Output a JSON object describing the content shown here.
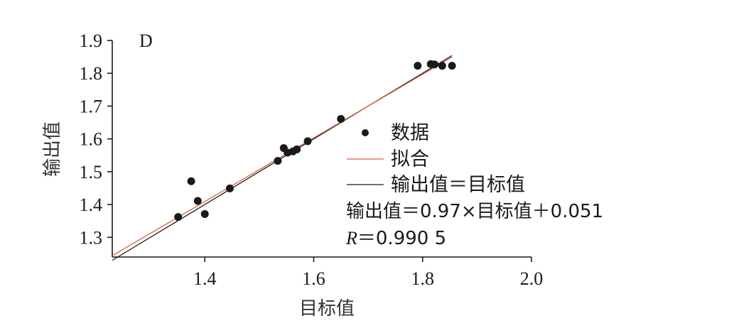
{
  "chart_data": {
    "type": "scatter",
    "panel_label": "D",
    "xlabel": "目标值",
    "ylabel": "输出值",
    "xlim": [
      1.23,
      2.0
    ],
    "ylim": [
      1.24,
      1.9
    ],
    "xticks": [
      1.4,
      1.6,
      1.8,
      2.0
    ],
    "xtick_labels": [
      "1.4",
      "1.6",
      "1.8",
      "2.0"
    ],
    "yticks": [
      1.3,
      1.4,
      1.5,
      1.6,
      1.7,
      1.8,
      1.9
    ],
    "ytick_labels": [
      "1.3",
      "1.4",
      "1.5",
      "1.6",
      "1.7",
      "1.8",
      "1.9"
    ],
    "grid": false,
    "legend_position": "center-right",
    "series": [
      {
        "name": "数据",
        "kind": "scatter",
        "color": "#1a1a1a",
        "points": [
          {
            "x": 1.351,
            "y": 1.362
          },
          {
            "x": 1.375,
            "y": 1.471
          },
          {
            "x": 1.387,
            "y": 1.411
          },
          {
            "x": 1.4,
            "y": 1.371
          },
          {
            "x": 1.446,
            "y": 1.449
          },
          {
            "x": 1.534,
            "y": 1.533
          },
          {
            "x": 1.545,
            "y": 1.572
          },
          {
            "x": 1.552,
            "y": 1.558
          },
          {
            "x": 1.562,
            "y": 1.562
          },
          {
            "x": 1.569,
            "y": 1.568
          },
          {
            "x": 1.589,
            "y": 1.593
          },
          {
            "x": 1.65,
            "y": 1.661
          },
          {
            "x": 1.791,
            "y": 1.823
          },
          {
            "x": 1.815,
            "y": 1.828
          },
          {
            "x": 1.822,
            "y": 1.827
          },
          {
            "x": 1.836,
            "y": 1.823
          },
          {
            "x": 1.854,
            "y": 1.823
          }
        ]
      },
      {
        "name": "拟合",
        "kind": "line",
        "color": "#d9603b",
        "slope": 0.97,
        "intercept": 0.051,
        "x_range": [
          1.23,
          1.854
        ]
      },
      {
        "name": "输出值＝目标值",
        "kind": "line",
        "color": "#1a1a1a",
        "slope": 1.0,
        "intercept": 0.0,
        "x_range": [
          1.23,
          1.854
        ]
      }
    ],
    "annotations": {
      "equation": "输出值＝0.97×目标值＋0.051",
      "r_label": "R",
      "r_value": "＝0.990 5"
    }
  }
}
